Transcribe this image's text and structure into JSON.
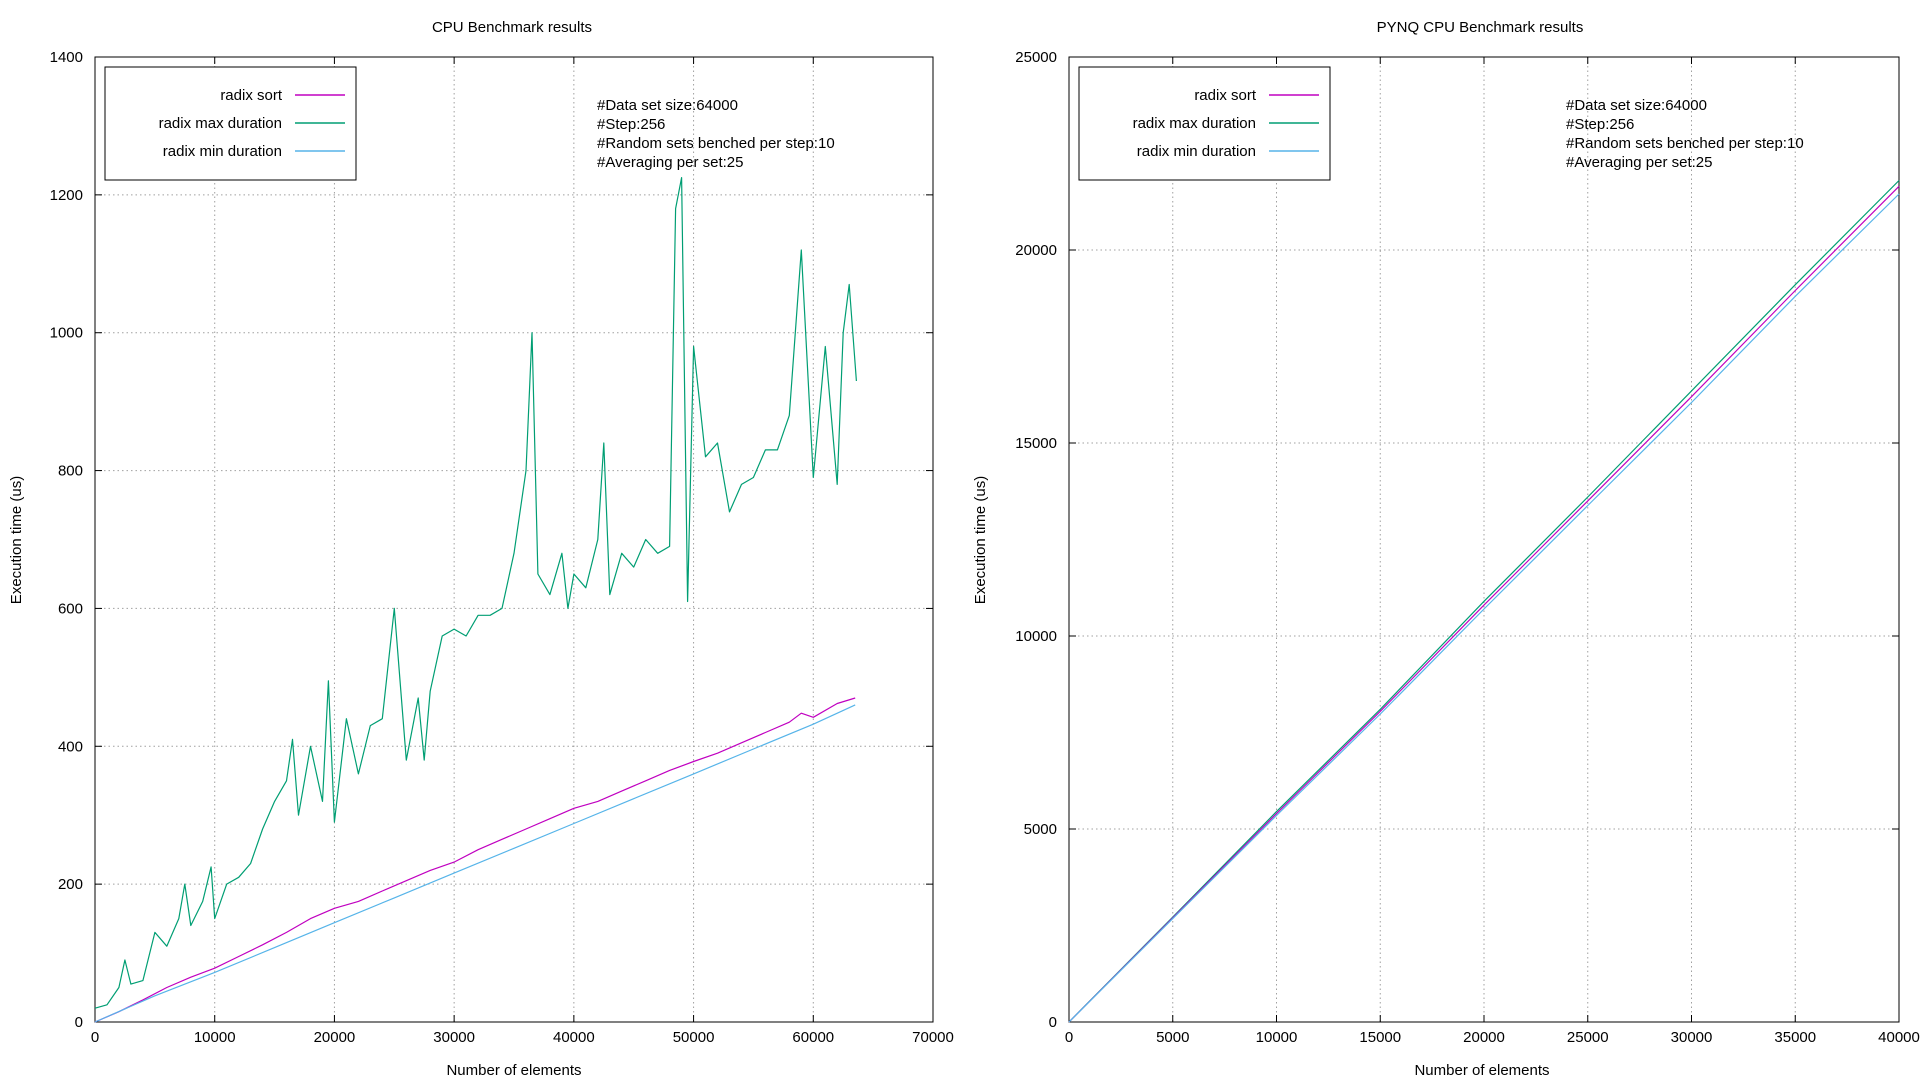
{
  "chart_data": [
    {
      "type": "line",
      "title": "CPU Benchmark results",
      "xlabel": "Number of elements",
      "ylabel": "Execution time (us)",
      "xlim": [
        0,
        70000
      ],
      "ylim": [
        0,
        1400
      ],
      "xticks": [
        "0",
        "10000",
        "20000",
        "30000",
        "40000",
        "50000",
        "60000",
        "70000"
      ],
      "yticks": [
        "0",
        "200",
        "400",
        "600",
        "800",
        "1000",
        "1200",
        "1400"
      ],
      "grid": true,
      "legend_position": "top-left",
      "annotations": [
        "#Data set size:64000",
        "#Step:256",
        "#Random sets benched per step:10",
        "#Averaging per set:25"
      ],
      "series": [
        {
          "name": "radix sort",
          "color": "#c000c0",
          "x": [
            0,
            2000,
            4000,
            6000,
            8000,
            10000,
            12000,
            14000,
            16000,
            18000,
            20000,
            22000,
            24000,
            26000,
            28000,
            30000,
            32000,
            34000,
            36000,
            38000,
            40000,
            42000,
            44000,
            46000,
            48000,
            50000,
            52000,
            54000,
            56000,
            58000,
            59000,
            60000,
            62000,
            63500
          ],
          "y": [
            0,
            15,
            32,
            50,
            65,
            78,
            95,
            112,
            130,
            150,
            165,
            175,
            190,
            205,
            220,
            232,
            250,
            265,
            280,
            295,
            310,
            320,
            335,
            350,
            365,
            378,
            390,
            405,
            420,
            435,
            448,
            442,
            462,
            470
          ]
        },
        {
          "name": "radix max duration",
          "color": "#009e73",
          "x": [
            0,
            1000,
            2000,
            2500,
            3000,
            4000,
            5000,
            6000,
            7000,
            7500,
            8000,
            9000,
            9700,
            10000,
            11000,
            12000,
            13000,
            14000,
            15000,
            16000,
            16500,
            17000,
            18000,
            19000,
            19500,
            20000,
            21000,
            22000,
            23000,
            24000,
            25000,
            26000,
            27000,
            27500,
            28000,
            29000,
            30000,
            31000,
            32000,
            33000,
            34000,
            35000,
            36000,
            36500,
            37000,
            38000,
            39000,
            39500,
            40000,
            41000,
            42000,
            42500,
            43000,
            44000,
            45000,
            46000,
            47000,
            48000,
            48500,
            49000,
            49500,
            50000,
            51000,
            52000,
            53000,
            54000,
            55000,
            56000,
            57000,
            58000,
            59000,
            60000,
            61000,
            62000,
            62500,
            63000,
            63600
          ],
          "y": [
            20,
            25,
            50,
            90,
            55,
            60,
            130,
            110,
            150,
            200,
            140,
            175,
            225,
            150,
            200,
            210,
            230,
            280,
            320,
            350,
            410,
            300,
            400,
            320,
            495,
            290,
            440,
            360,
            430,
            440,
            600,
            380,
            470,
            380,
            480,
            560,
            570,
            560,
            590,
            590,
            600,
            680,
            800,
            1000,
            650,
            620,
            680,
            600,
            650,
            630,
            700,
            840,
            620,
            680,
            660,
            700,
            680,
            690,
            1180,
            1225,
            610,
            980,
            820,
            840,
            740,
            780,
            790,
            830,
            830,
            880,
            1120,
            790,
            980,
            780,
            1000,
            1070,
            930
          ]
        },
        {
          "name": "radix min duration",
          "color": "#56b4e9",
          "x": [
            0,
            5000,
            10000,
            15000,
            20000,
            25000,
            30000,
            35000,
            40000,
            45000,
            50000,
            55000,
            60000,
            63500
          ],
          "y": [
            0,
            38,
            72,
            108,
            144,
            180,
            216,
            252,
            288,
            324,
            360,
            396,
            432,
            460
          ]
        }
      ]
    },
    {
      "type": "line",
      "title": "PYNQ CPU Benchmark results",
      "xlabel": "Number of elements",
      "ylabel": "Execution time (us)",
      "xlim": [
        0,
        40000
      ],
      "ylim": [
        0,
        25000
      ],
      "xticks": [
        "0",
        "5000",
        "10000",
        "15000",
        "20000",
        "25000",
        "30000",
        "35000",
        "40000"
      ],
      "yticks": [
        "0",
        "5000",
        "10000",
        "15000",
        "20000",
        "25000"
      ],
      "grid": true,
      "legend_position": "top-left",
      "annotations": [
        "#Data set size:64000",
        "#Step:256",
        "#Random sets benched per step:10",
        "#Averaging per set:25"
      ],
      "series": [
        {
          "name": "radix sort",
          "color": "#c000c0",
          "x": [
            0,
            5000,
            10000,
            15000,
            20000,
            25000,
            30000,
            35000,
            40000
          ],
          "y": [
            0,
            2700,
            5400,
            8050,
            10800,
            13500,
            16200,
            18950,
            21650
          ]
        },
        {
          "name": "radix max duration",
          "color": "#009e73",
          "x": [
            0,
            5000,
            10000,
            15000,
            20000,
            25000,
            30000,
            35000,
            40000
          ],
          "y": [
            0,
            2720,
            5450,
            8100,
            10900,
            13600,
            16350,
            19100,
            21800
          ]
        },
        {
          "name": "radix min duration",
          "color": "#56b4e9",
          "x": [
            0,
            5000,
            10000,
            15000,
            20000,
            25000,
            30000,
            35000,
            40000
          ],
          "y": [
            0,
            2680,
            5350,
            7980,
            10700,
            13380,
            16050,
            18800,
            21450
          ]
        }
      ]
    }
  ]
}
